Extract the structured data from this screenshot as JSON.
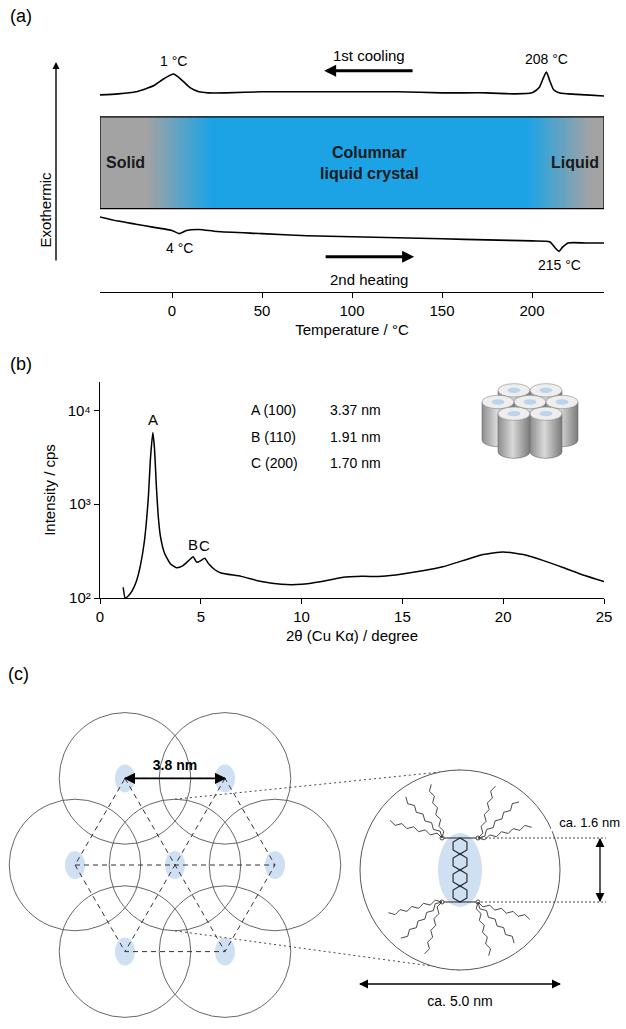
{
  "chart_data": [
    {
      "panel_label": "(a)",
      "type": "line",
      "x_label": "Temperature / °C",
      "y_label": "Exothermic",
      "xlim": [
        -40,
        240
      ],
      "xticks": [
        0,
        50,
        100,
        150,
        200
      ],
      "ylim": [
        -1.2,
        10.5
      ],
      "tick_labels": "x",
      "grid": false,
      "series": [
        {
          "name": "1st cooling",
          "color": "#000000",
          "x": [
            240,
            230,
            220,
            215,
            212,
            210,
            208,
            206,
            204,
            200,
            190,
            175,
            150,
            125,
            100,
            75,
            50,
            30,
            20,
            15,
            10,
            5,
            2,
            1,
            -5,
            -10,
            -20,
            -30,
            -40
          ],
          "values": [
            8.2,
            8.25,
            8.3,
            8.35,
            8.5,
            8.9,
            9.35,
            9.0,
            8.6,
            8.35,
            8.3,
            8.35,
            8.35,
            8.4,
            8.4,
            8.4,
            8.4,
            8.35,
            8.35,
            8.4,
            8.6,
            9.0,
            9.2,
            9.25,
            9.0,
            8.7,
            8.4,
            8.3,
            8.25
          ],
          "peaks": [
            {
              "x": 1,
              "label": "1 °C"
            },
            {
              "x": 208,
              "label": "208 °C"
            }
          ]
        },
        {
          "name": "2nd heating",
          "color": "#000000",
          "x": [
            -40,
            -30,
            -20,
            -10,
            0,
            4,
            8,
            15,
            25,
            50,
            75,
            100,
            125,
            150,
            175,
            200,
            210,
            213,
            215,
            217,
            220,
            230,
            240
          ],
          "values": [
            2.4,
            2.2,
            2.05,
            1.9,
            1.75,
            1.6,
            1.75,
            1.8,
            1.7,
            1.6,
            1.5,
            1.45,
            1.4,
            1.35,
            1.3,
            1.25,
            1.2,
            0.9,
            0.75,
            0.95,
            1.15,
            1.15,
            1.15
          ],
          "peaks": [
            {
              "x": 4,
              "label": "4 °C"
            },
            {
              "x": 215,
              "label": "215 °C"
            }
          ]
        }
      ],
      "phases": [
        {
          "label": "Solid",
          "from": -40,
          "to": 4,
          "color": "#a3a3a3"
        },
        {
          "label": "Columnar liquid crystal",
          "from": 4,
          "to": 215,
          "color": "#1ba3e6"
        },
        {
          "label": "Liquid",
          "from": 215,
          "to": 240,
          "color": "#a3a3a3"
        }
      ]
    },
    {
      "panel_label": "(b)",
      "type": "line",
      "log": "y",
      "x_label": "2θ (Cu Kα) / degree",
      "y_label": "Intensity / cps",
      "xlim": [
        0,
        25
      ],
      "xticks": [
        0,
        5,
        10,
        15,
        20,
        25
      ],
      "ylim": [
        100,
        20000
      ],
      "yticks": [
        {
          "value": 100,
          "label": "10²"
        },
        {
          "value": 1000,
          "label": "10³"
        },
        {
          "value": 10000,
          "label": "10⁴"
        }
      ],
      "grid": false,
      "series": [
        {
          "color": "#000000",
          "x": [
            1.15,
            1.25,
            1.4,
            1.6,
            1.8,
            2.0,
            2.2,
            2.4,
            2.5,
            2.62,
            2.7,
            2.8,
            2.9,
            3.0,
            3.2,
            3.5,
            3.8,
            4.1,
            4.4,
            4.62,
            4.8,
            5.0,
            5.19,
            5.4,
            5.7,
            6.0,
            7,
            8,
            9,
            10,
            11,
            12,
            13,
            14,
            15,
            16,
            17,
            18,
            19,
            20,
            21,
            22,
            23,
            24,
            25
          ],
          "values": [
            130,
            100,
            105,
            120,
            150,
            220,
            400,
            1200,
            3000,
            5800,
            4000,
            1500,
            700,
            450,
            300,
            230,
            210,
            220,
            250,
            275,
            240,
            250,
            265,
            230,
            200,
            185,
            170,
            150,
            140,
            140,
            150,
            165,
            170,
            170,
            180,
            195,
            215,
            250,
            290,
            310,
            290,
            250,
            210,
            175,
            150
          ]
        }
      ],
      "peaks": [
        {
          "label": "A",
          "hkl": "(100)",
          "x": 2.62,
          "d": {
            "value": 3.37,
            "label": "3.37 nm"
          }
        },
        {
          "label": "B",
          "hkl": "(110)",
          "x": 4.62,
          "d": {
            "value": 1.91,
            "label": "1.91 nm"
          }
        },
        {
          "label": "C",
          "hkl": "(200)",
          "x": 5.19,
          "d": {
            "value": 1.7,
            "label": "1.70 nm"
          }
        }
      ]
    }
  ],
  "diagram": {
    "panel_label": "(c)",
    "lattice_spacing": {
      "value": 3.8,
      "label": "3.8 nm"
    },
    "column_diameter": {
      "value": 5.0,
      "label": "ca. 5.0 nm"
    },
    "core_size": {
      "value": 1.6,
      "label": "ca. 1.6 nm"
    }
  }
}
